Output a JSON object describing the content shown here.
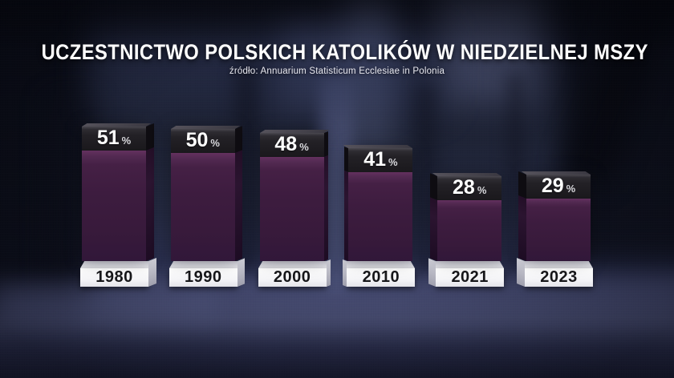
{
  "header": {
    "title": "UCZESTNICTWO POLSKICH KATOLIKÓW W NIEDZIELNEJ MSZY",
    "source": "źródło: Annuarium Statisticum Ecclesiae in Polonia"
  },
  "colors": {
    "bar_purple": "#3d1c3f",
    "bar_purple_highlight": "#64315f",
    "cap_black": "#232126",
    "pedestal_white": "#f7f7f9",
    "year_text": "#17171a",
    "title_text": "#ffffff",
    "background_navy": "#242940"
  },
  "chart_data": {
    "type": "bar",
    "title": "UCZESTNICTWO POLSKICH KATOLIKÓW W NIEDZIELNEJ MSZY",
    "subtitle": "źródło: Annuarium Statisticum Ecclesiae in Polonia",
    "categories": [
      "1980",
      "1990",
      "2000",
      "2010",
      "2021",
      "2023"
    ],
    "values": [
      51,
      50,
      48,
      41,
      28,
      29
    ],
    "unit": "%",
    "xlabel": "",
    "ylabel": "",
    "ylim": [
      0,
      55
    ],
    "grid": false,
    "legend": false,
    "axes_visible": false,
    "label_position": "inside-bar-top",
    "bar_style": "3d-column",
    "bar_color": "#3d1c3f"
  }
}
